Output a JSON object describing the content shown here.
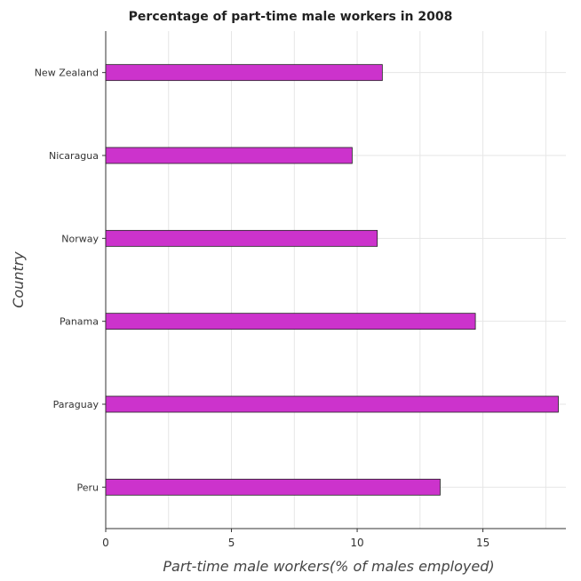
{
  "chart_data": {
    "type": "bar",
    "orientation": "horizontal",
    "title": "Percentage of part-time male workers in 2008",
    "xlabel": "Part-time male workers(% of males employed)",
    "ylabel": "Country",
    "categories": [
      "New Zealand",
      "Nicaragua",
      "Norway",
      "Panama",
      "Paraguay",
      "Peru"
    ],
    "values": [
      11.0,
      9.8,
      10.8,
      14.7,
      18.0,
      13.3
    ],
    "xlim": [
      0,
      18.3
    ],
    "xticks": [
      0,
      5,
      10,
      15
    ],
    "grid": true,
    "legend": "none",
    "bar_color": "#cc33cc",
    "bar_border_color": "#222222"
  }
}
